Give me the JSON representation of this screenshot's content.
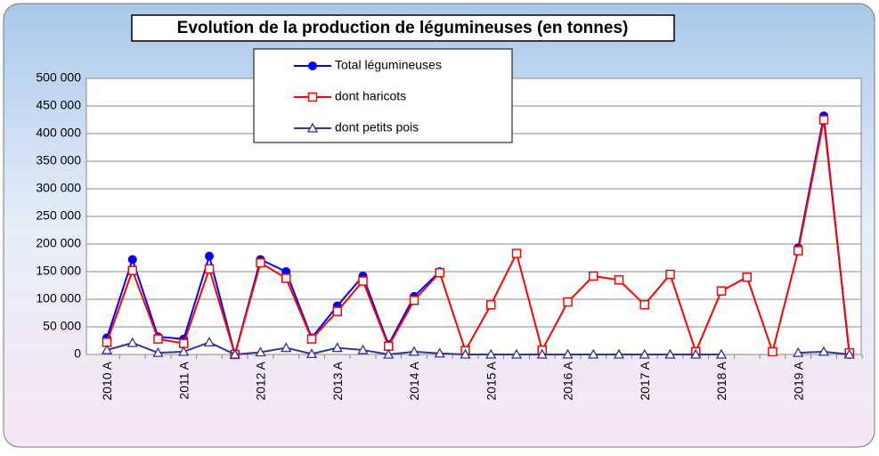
{
  "chart_data": {
    "type": "line",
    "title": "Evolution de la production de légumineuses (en tonnes)",
    "categories": [
      "2010 A",
      null,
      null,
      "2011 A",
      null,
      null,
      "2012 A",
      null,
      null,
      "2013 A",
      null,
      null,
      "2014 A",
      null,
      null,
      "2015 A",
      null,
      null,
      "2016 A",
      null,
      null,
      "2017 A",
      null,
      null,
      "2018 A",
      null,
      null,
      "2019 A",
      null,
      null
    ],
    "series": [
      {
        "name": "Total légumineuses",
        "color": "#0000ff",
        "marker": "circle",
        "values": [
          30000,
          172000,
          32000,
          28000,
          178000,
          0,
          172000,
          150000,
          30000,
          88000,
          142000,
          18000,
          105000,
          150000,
          null,
          null,
          null,
          null,
          null,
          null,
          null,
          null,
          null,
          null,
          null,
          null,
          null,
          193000,
          432000,
          0
        ]
      },
      {
        "name": "dont haricots",
        "color": "#ff0000",
        "marker": "square",
        "values": [
          22000,
          152000,
          28000,
          20000,
          155000,
          0,
          166000,
          138000,
          28000,
          78000,
          133000,
          15000,
          98000,
          148000,
          7000,
          90000,
          183000,
          8000,
          95000,
          142000,
          135000,
          90000,
          145000,
          5000,
          115000,
          140000,
          5000,
          188000,
          425000,
          3000
        ]
      },
      {
        "name": "dont petits pois",
        "color": "#333399",
        "marker": "triangle",
        "values": [
          8000,
          21000,
          3000,
          5000,
          22000,
          0,
          4000,
          12000,
          1000,
          12000,
          8000,
          0,
          5000,
          2000,
          0,
          0,
          0,
          0,
          0,
          0,
          0,
          0,
          0,
          0,
          0,
          null,
          null,
          3000,
          5000,
          0
        ]
      }
    ],
    "ylim": [
      0,
      500000
    ],
    "yticks": [
      0,
      {
        "value": 50000,
        "label": "50 000"
      },
      {
        "value": 100000,
        "label": "100 000"
      },
      {
        "value": 150000,
        "label": "150 000"
      },
      {
        "value": 200000,
        "label": "200 000"
      },
      {
        "value": 250000,
        "label": "250 000"
      },
      {
        "value": 300000,
        "label": "300 000"
      },
      {
        "value": 350000,
        "label": "350 000"
      },
      {
        "value": 400000,
        "label": "400 000"
      },
      {
        "value": 450000,
        "label": "450 000"
      },
      {
        "value": 500000,
        "label": "500 000"
      }
    ],
    "grid": true
  }
}
